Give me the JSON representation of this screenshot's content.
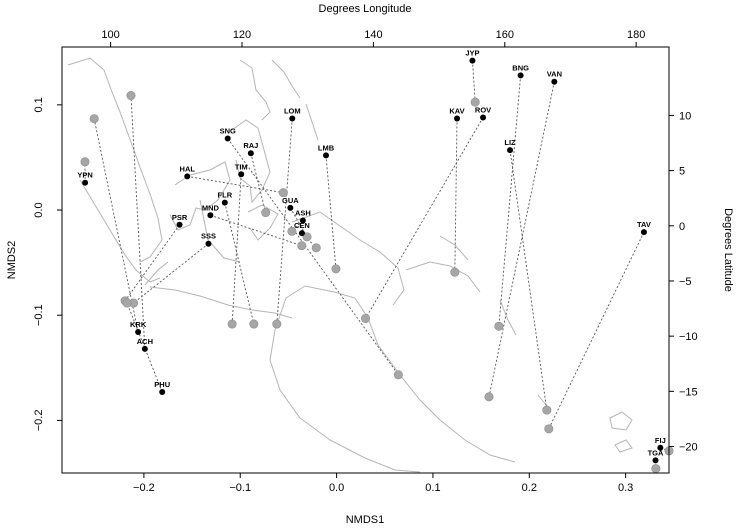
{
  "chart_data": {
    "type": "scatter",
    "xlabel": "NMDS1",
    "ylabel": "NMDS2",
    "top_axis_label": "Degrees Longitude",
    "right_axis_label": "Degrees Latitude",
    "xlim": [
      -0.285,
      0.345
    ],
    "ylim": [
      -0.25,
      0.155
    ],
    "lon_range": [
      92.6,
      185.0
    ],
    "lat_range": [
      -22.4,
      16.2
    ],
    "x_ticks": [
      -0.2,
      -0.1,
      0.0,
      0.1,
      0.2,
      0.3
    ],
    "x_tick_labels": [
      "−0.2",
      "−0.1",
      "0.0",
      "0.1",
      "0.2",
      "0.3"
    ],
    "y_ticks": [
      -0.2,
      -0.1,
      0.0,
      0.1
    ],
    "y_tick_labels": [
      "−0.2",
      "−0.1",
      "0.0",
      "0.1"
    ],
    "lon_ticks": [
      100,
      120,
      140,
      160,
      180
    ],
    "lon_tick_labels": [
      "100",
      "120",
      "140",
      "160",
      "180"
    ],
    "lat_ticks": [
      10,
      5,
      0,
      -5,
      -10,
      -15,
      -20
    ],
    "lat_tick_labels": [
      "10",
      "5",
      "0",
      "−5",
      "−10",
      "−15",
      "−20"
    ],
    "grid": false,
    "point_colors": {
      "nmds_score": "#000000",
      "geographic_location": "#a6a6a6",
      "connector": "#555555",
      "map_outline": "#b5b5b5"
    },
    "series": [
      {
        "name": "",
        "role": "nmds_score",
        "labels": [
          "YPN",
          "HAL",
          "SNG",
          "RAJ",
          "TIM",
          "LOM",
          "LMB",
          "FLR",
          "MND",
          "GUA",
          "ASH",
          "CEN",
          "PSR",
          "SSS",
          "KRK",
          "ACH",
          "PHU",
          "JYP",
          "BNG",
          "VAN",
          "KAV",
          "ROV",
          "LIZ",
          "TAV",
          "FIJ",
          "TGA"
        ],
        "x": [
          -0.261,
          -0.155,
          -0.113,
          -0.089,
          -0.099,
          -0.046,
          -0.011,
          -0.116,
          -0.131,
          -0.048,
          -0.035,
          -0.036,
          -0.163,
          -0.133,
          -0.206,
          -0.199,
          -0.181,
          0.141,
          0.191,
          0.226,
          0.125,
          0.152,
          0.18,
          0.319,
          0.336,
          0.331
        ],
        "y": [
          0.026,
          0.032,
          0.068,
          0.054,
          0.034,
          0.087,
          0.052,
          0.007,
          -0.005,
          0.002,
          -0.01,
          -0.022,
          -0.014,
          -0.032,
          -0.116,
          -0.132,
          -0.173,
          0.142,
          0.128,
          0.122,
          0.087,
          0.088,
          0.057,
          -0.021,
          -0.226,
          -0.238
        ]
      },
      {
        "name": "",
        "role": "geographic_location",
        "labels": [
          "YPN",
          "HAL",
          "SNG",
          "RAJ",
          "TIM",
          "LOM",
          "LMB",
          "FLR",
          "MND",
          "GUA",
          "ASH",
          "CEN",
          "PSR",
          "SSS",
          "KRK",
          "ACH",
          "PHU",
          "JYP",
          "BNG",
          "VAN",
          "KAV",
          "ROV",
          "LIZ",
          "TAV",
          "FIJ",
          "TGA"
        ],
        "lon": [
          96.1,
          126.3,
          143.8,
          123.6,
          118.5,
          125.3,
          134.3,
          121.8,
          129.1,
          129.9,
          127.6,
          131.3,
          102.2,
          103.5,
          97.5,
          103.1,
          102.5,
          155.5,
          159.1,
          157.6,
          152.4,
          138.8,
          166.4,
          166.7,
          185.0,
          183.0
        ],
        "lat": [
          5.8,
          3.0,
          -13.5,
          1.2,
          -8.9,
          -8.9,
          -3.9,
          -8.9,
          -1.8,
          -1.0,
          -0.5,
          -2.0,
          -6.8,
          -7.0,
          9.7,
          11.8,
          -7.0,
          11.2,
          -9.1,
          -15.5,
          -4.2,
          -8.4,
          -16.7,
          -18.4,
          -20.4,
          -22.0
        ]
      }
    ]
  }
}
